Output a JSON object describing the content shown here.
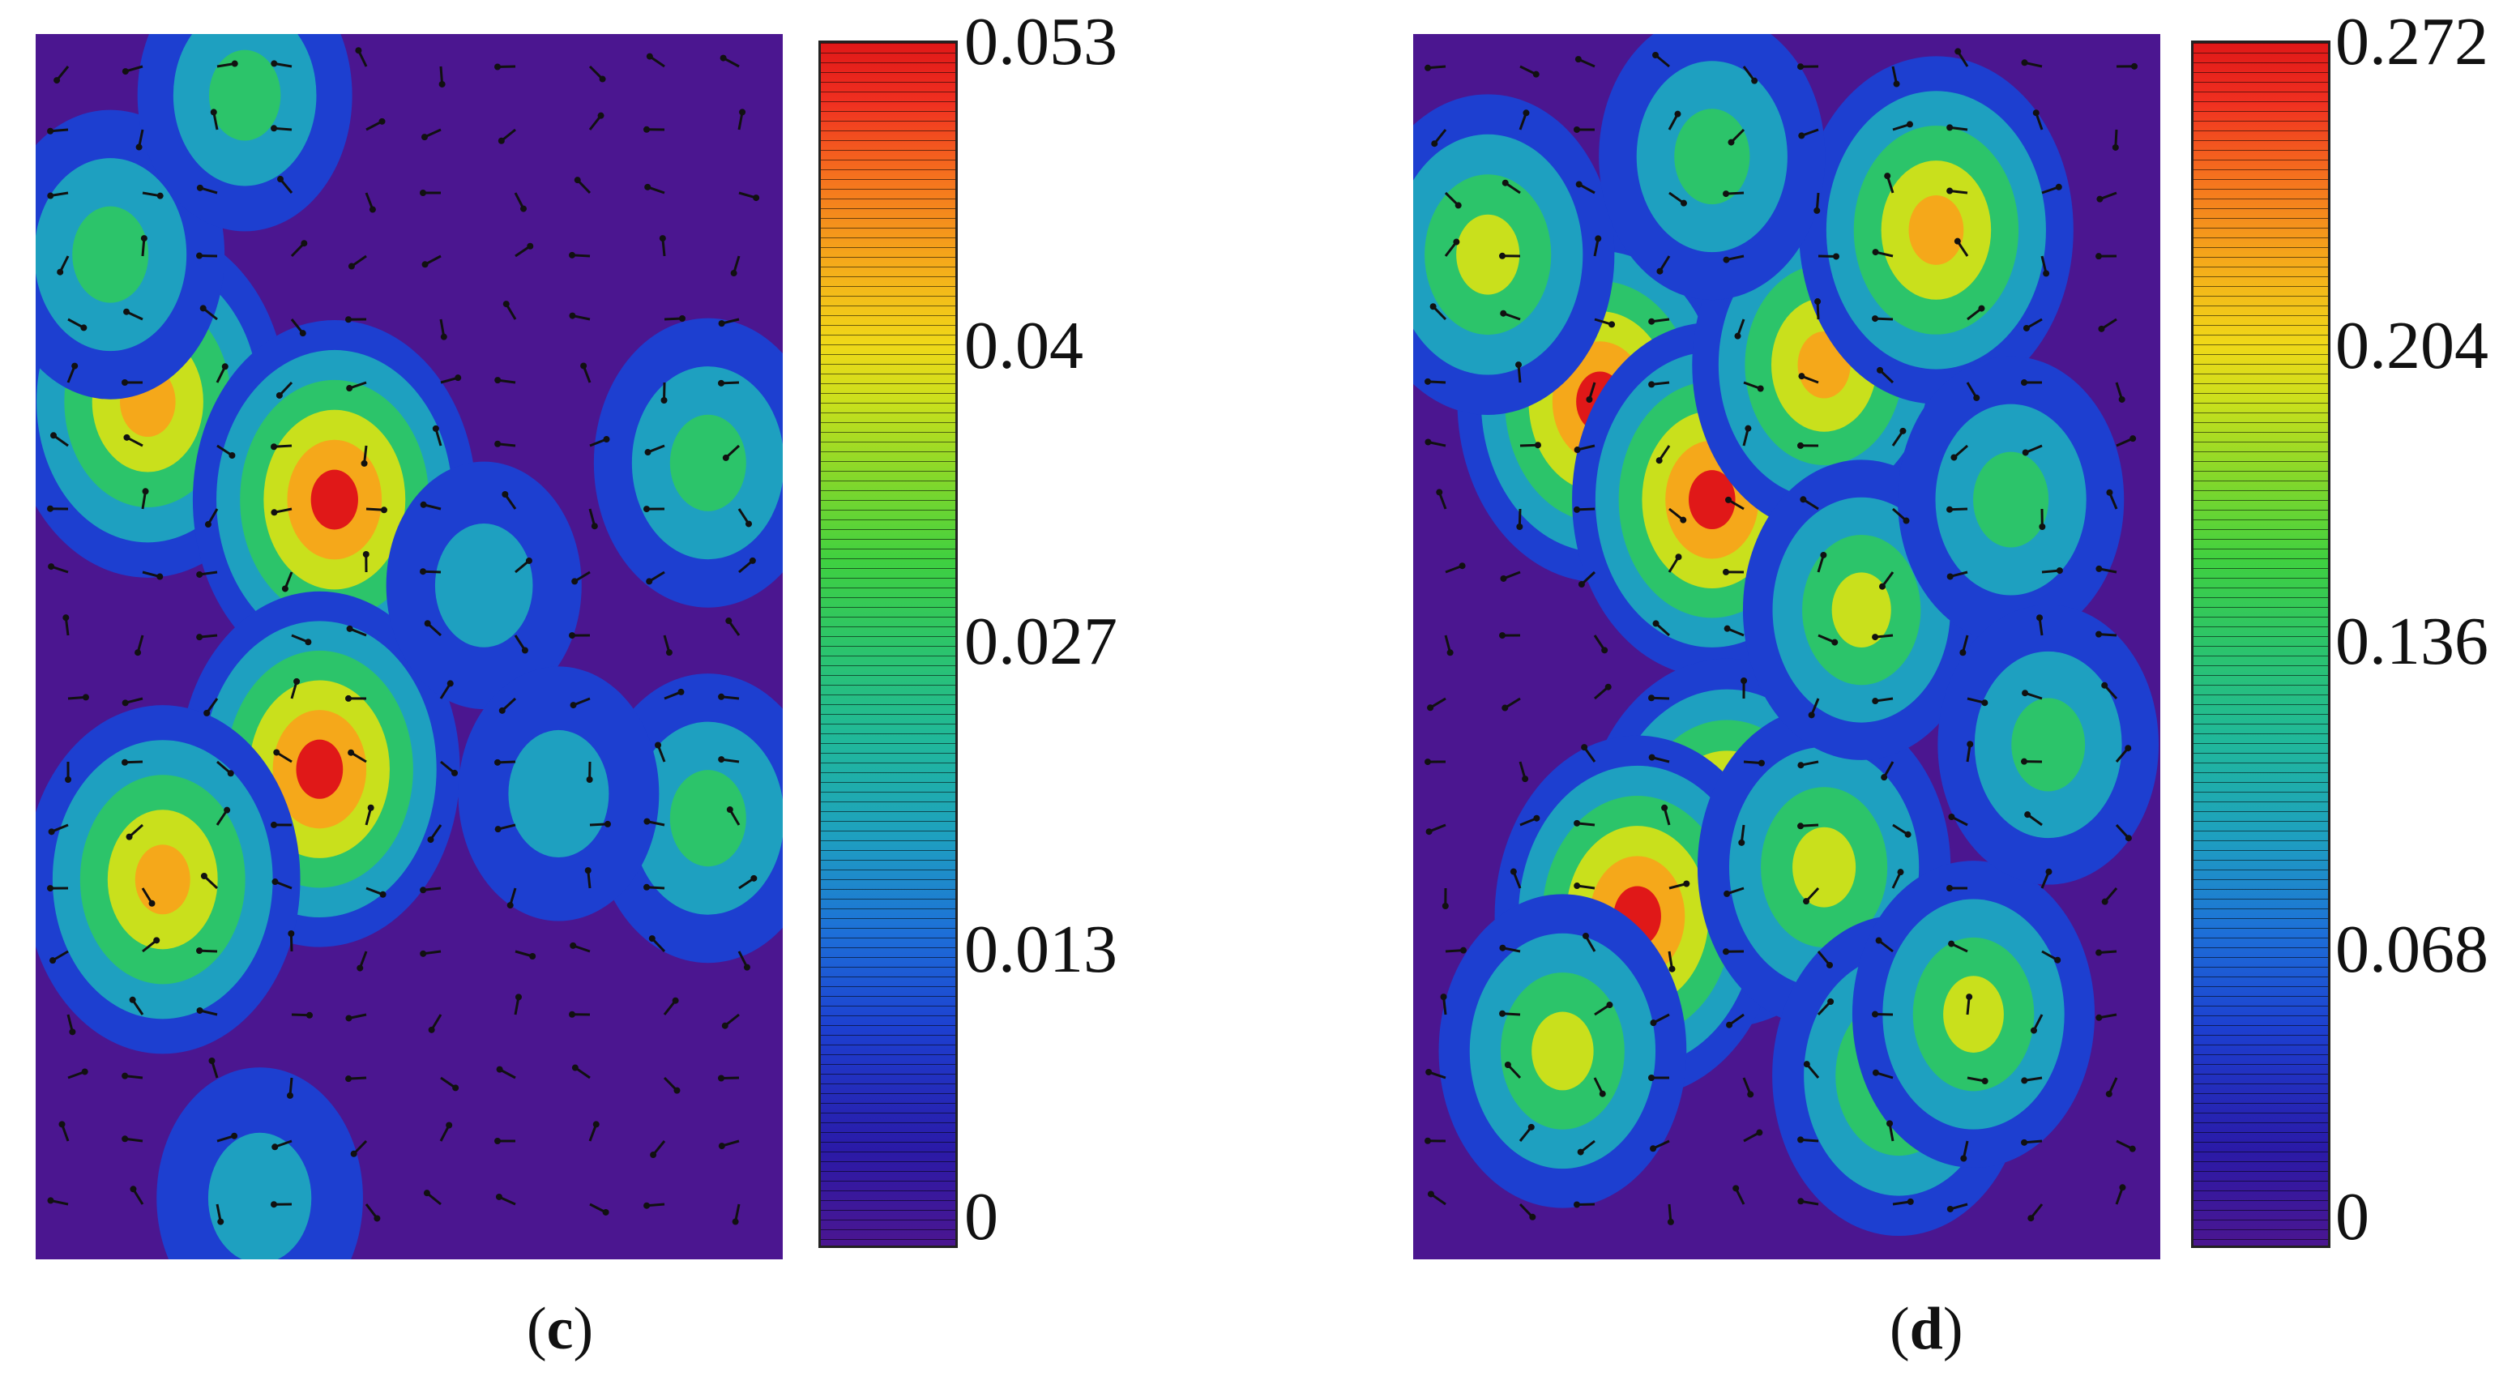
{
  "chart_data": [
    {
      "type": "heatmap",
      "panel_label": "c",
      "colorbar": {
        "ticks": [
          "0.053",
          "0.04",
          "0.027",
          "0.013",
          "0"
        ],
        "min": 0,
        "max": 0.053
      },
      "colormap": [
        "#4b1690",
        "#1d3fd0",
        "#1ea0c0",
        "#2cc46a",
        "#c9e01c",
        "#f5a81a",
        "#e01818"
      ],
      "hotspots": [
        {
          "x": 0.15,
          "y": 0.3,
          "value": 0.048
        },
        {
          "x": 0.4,
          "y": 0.38,
          "value": 0.05
        },
        {
          "x": 0.38,
          "y": 0.6,
          "value": 0.049
        },
        {
          "x": 0.17,
          "y": 0.69,
          "value": 0.047
        },
        {
          "x": 0.1,
          "y": 0.18,
          "value": 0.03
        },
        {
          "x": 0.28,
          "y": 0.05,
          "value": 0.025
        },
        {
          "x": 0.9,
          "y": 0.35,
          "value": 0.03
        },
        {
          "x": 0.9,
          "y": 0.64,
          "value": 0.03
        },
        {
          "x": 0.6,
          "y": 0.45,
          "value": 0.018
        },
        {
          "x": 0.7,
          "y": 0.62,
          "value": 0.02
        },
        {
          "x": 0.3,
          "y": 0.95,
          "value": 0.022
        }
      ]
    },
    {
      "type": "heatmap",
      "panel_label": "d",
      "colorbar": {
        "ticks": [
          "0.272",
          "0.204",
          "0.136",
          "0.068",
          "0"
        ],
        "min": 0,
        "max": 0.272
      },
      "colormap": [
        "#4b1690",
        "#1d3fd0",
        "#1ea0c0",
        "#2cc46a",
        "#c9e01c",
        "#f5a81a",
        "#e01818"
      ],
      "hotspots": [
        {
          "x": 0.25,
          "y": 0.3,
          "value": 0.26
        },
        {
          "x": 0.4,
          "y": 0.38,
          "value": 0.25
        },
        {
          "x": 0.55,
          "y": 0.27,
          "value": 0.22
        },
        {
          "x": 0.7,
          "y": 0.16,
          "value": 0.24
        },
        {
          "x": 0.42,
          "y": 0.66,
          "value": 0.27
        },
        {
          "x": 0.3,
          "y": 0.72,
          "value": 0.26
        },
        {
          "x": 0.55,
          "y": 0.68,
          "value": 0.2
        },
        {
          "x": 0.65,
          "y": 0.85,
          "value": 0.2
        },
        {
          "x": 0.75,
          "y": 0.8,
          "value": 0.18
        },
        {
          "x": 0.2,
          "y": 0.83,
          "value": 0.19
        },
        {
          "x": 0.1,
          "y": 0.18,
          "value": 0.2
        },
        {
          "x": 0.6,
          "y": 0.47,
          "value": 0.17
        },
        {
          "x": 0.8,
          "y": 0.38,
          "value": 0.15
        },
        {
          "x": 0.85,
          "y": 0.58,
          "value": 0.14
        },
        {
          "x": 0.4,
          "y": 0.1,
          "value": 0.15
        }
      ]
    }
  ]
}
